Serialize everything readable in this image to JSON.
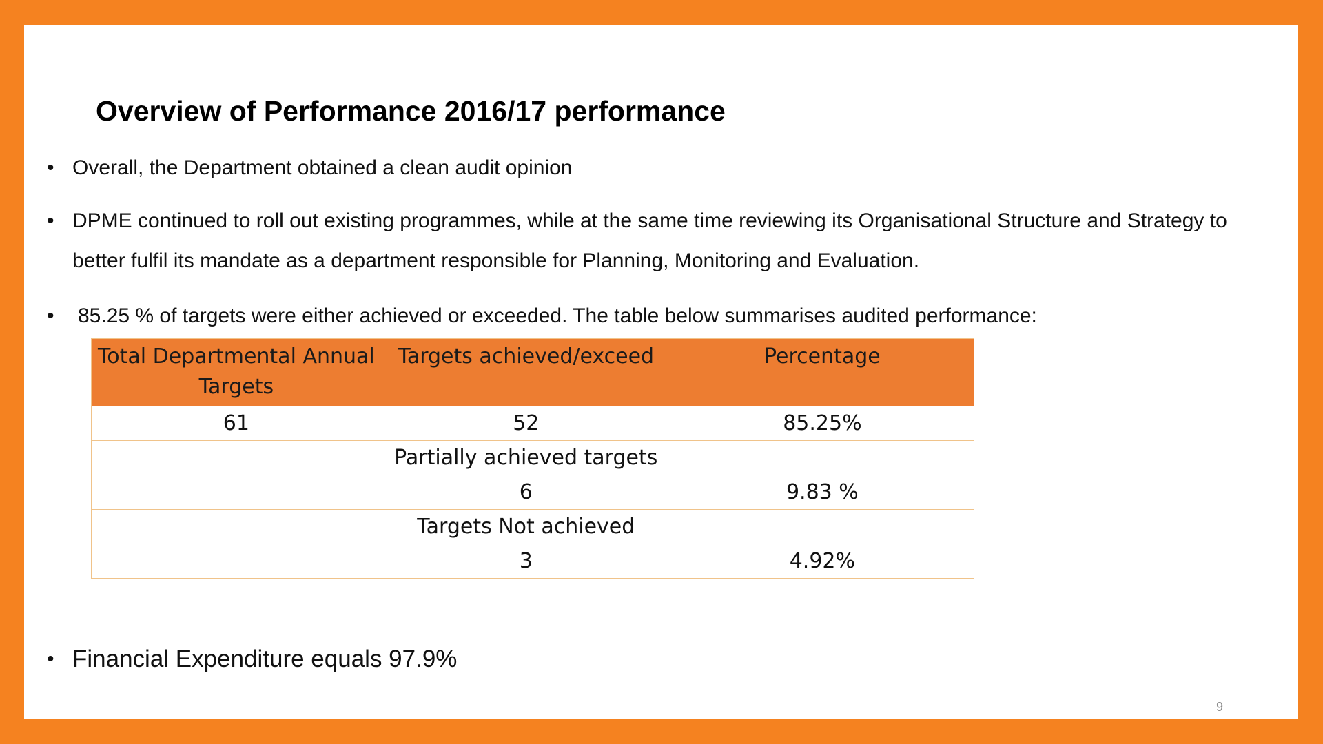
{
  "slide": {
    "title": "Overview of Performance 2016/17 performance",
    "bullet_symbol": "•",
    "bullets": [
      "Overall, the  Department obtained a clean audit opinion",
      "DPME continued to roll out existing programmes, while at the same time reviewing its Organisational Structure and Strategy to better fulfil its mandate as a department responsible for Planning, Monitoring and Evaluation.",
      "85.25 %  of targets were either achieved or exceeded. The table below summarises audited performance:",
      "Financial Expenditure equals 97.9%"
    ],
    "page_number": "9",
    "colors": {
      "border": "#F58220",
      "table_header": "#ED7D31",
      "table_lines": "#F0C38A"
    }
  },
  "table": {
    "headers": [
      "Total Departmental Annual Targets",
      "Targets achieved/exceed",
      "Percentage"
    ],
    "rows": [
      [
        "61",
        "52",
        "85.25%"
      ],
      [
        "",
        "Partially achieved targets",
        ""
      ],
      [
        "",
        "6",
        "9.83 %"
      ],
      [
        "",
        "Targets Not achieved",
        ""
      ],
      [
        "",
        "3",
        "4.92%"
      ]
    ]
  }
}
